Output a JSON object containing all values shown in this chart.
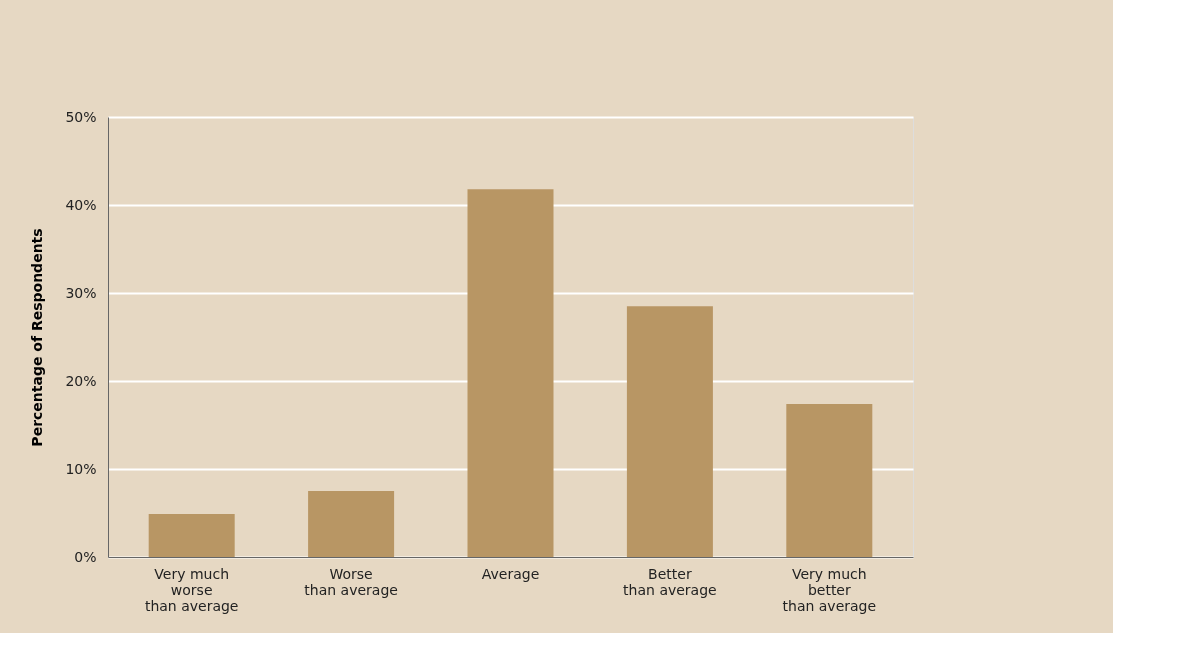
{
  "chart_data": {
    "type": "bar",
    "ylabel": "Percentage of Respondents",
    "categories": [
      "Very much\nworse\nthan average",
      "Worse\nthan average",
      "Average",
      "Better\nthan average",
      "Very much\nbetter\nthan average"
    ],
    "values": [
      4.9,
      7.5,
      41.8,
      28.5,
      17.4
    ],
    "color": "#b89664",
    "ylim": [
      0,
      50
    ],
    "yticks": [
      {
        "value": 0,
        "label": "0%"
      },
      {
        "value": 10,
        "label": "10%"
      },
      {
        "value": 20,
        "label": "20%"
      },
      {
        "value": 30,
        "label": "30%"
      },
      {
        "value": 40,
        "label": "40%"
      },
      {
        "value": 50,
        "label": "50%"
      }
    ],
    "grid": "y"
  }
}
